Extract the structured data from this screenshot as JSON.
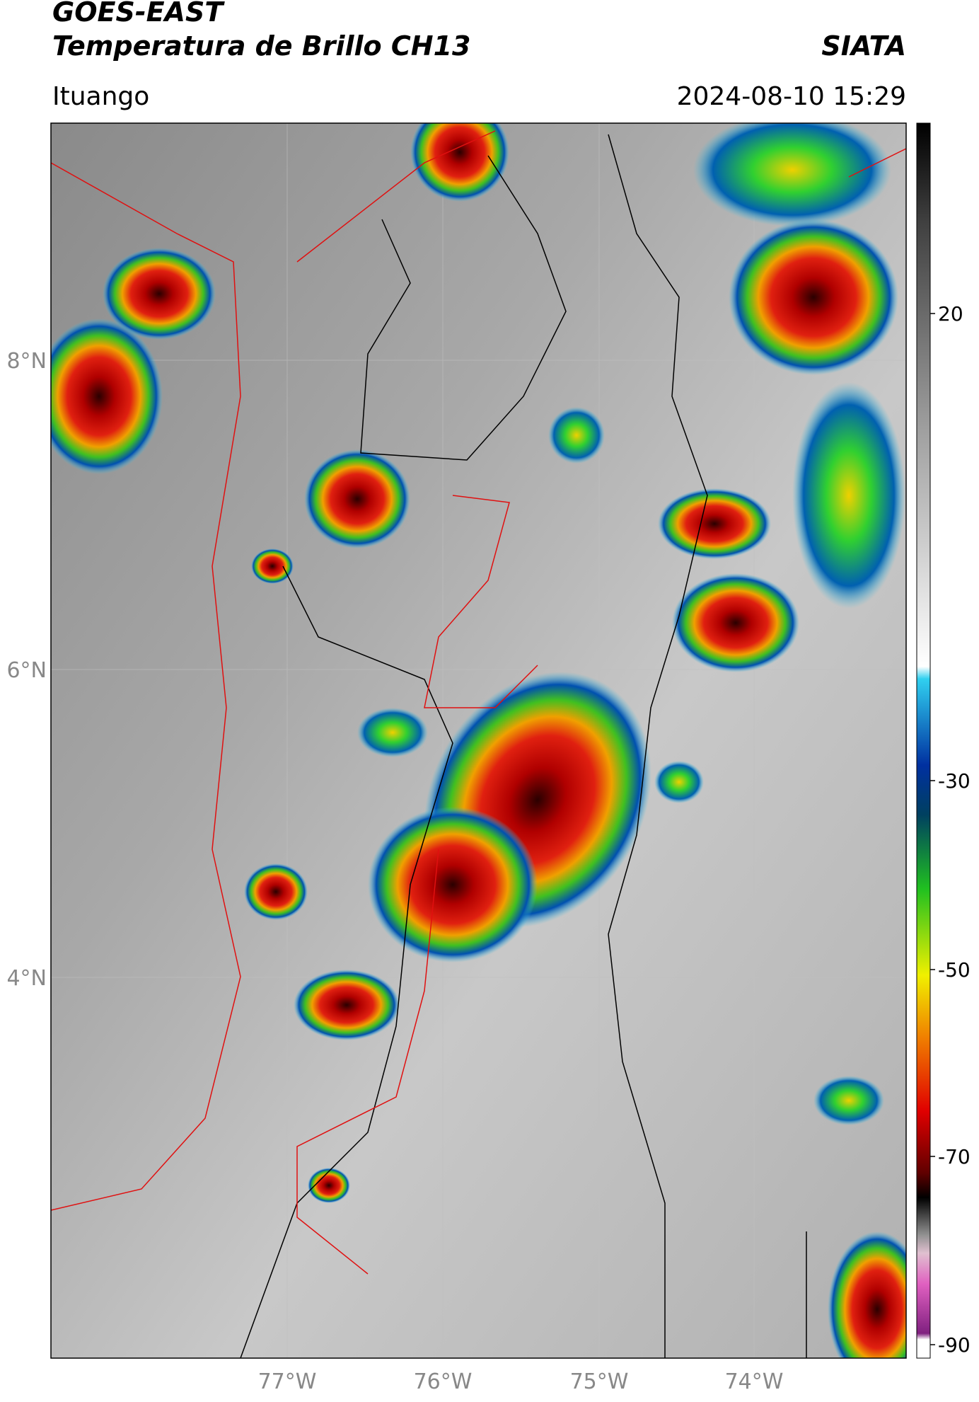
{
  "header": {
    "satellite": "GOES-EAST",
    "product": "Temperatura de Brillo CH13",
    "org": "SIATA",
    "location": "Ituango",
    "datetime": "2024-08-10 15:29"
  },
  "map": {
    "lat_labels": [
      "8°N",
      "6°N",
      "4°N"
    ],
    "lon_labels": [
      "77°W",
      "76°W",
      "75°W",
      "74°W"
    ]
  },
  "colorbar": {
    "ticks": [
      "20",
      "-30",
      "-50",
      "-70",
      "-90"
    ]
  }
}
